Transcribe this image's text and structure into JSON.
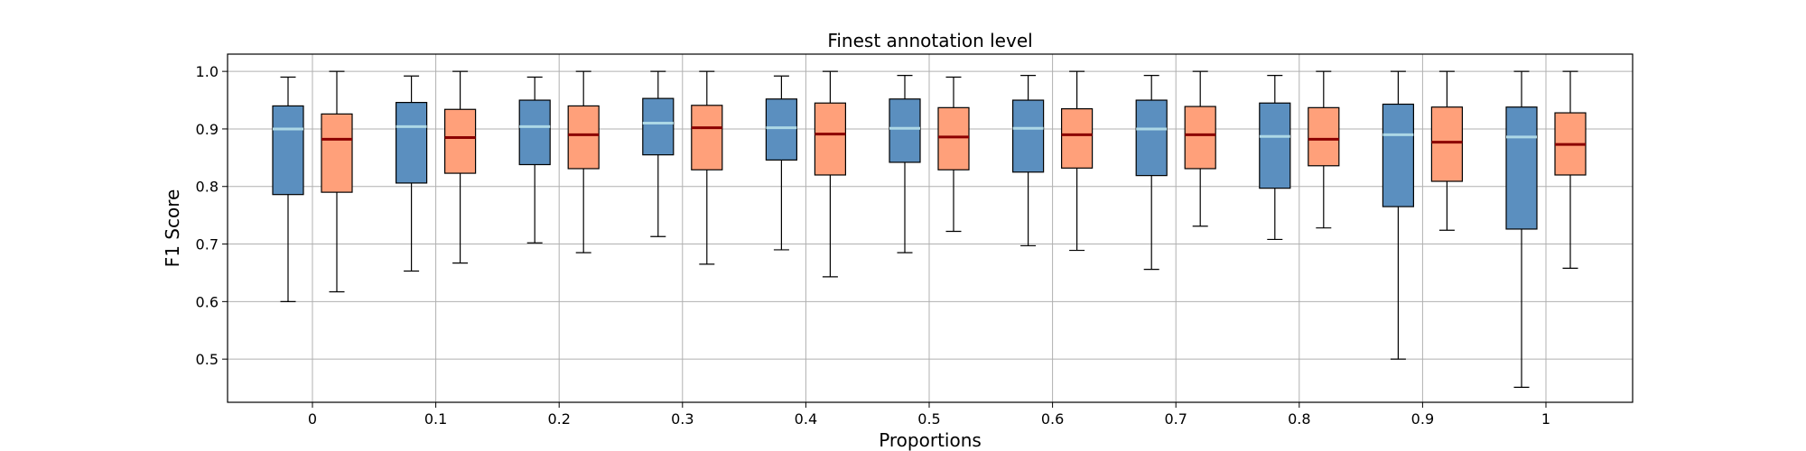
{
  "chart_data": {
    "type": "box",
    "title": "Finest annotation level",
    "xlabel": "Proportions",
    "ylabel": "F1 Score",
    "ylim": [
      0.425,
      1.03
    ],
    "yticks": [
      0.5,
      0.6,
      0.7,
      0.8,
      0.9,
      1.0
    ],
    "ytick_labels": [
      "0.5",
      "0.6",
      "0.7",
      "0.8",
      "0.9",
      "1.0"
    ],
    "categories": [
      "0",
      "0.1",
      "0.2",
      "0.3",
      "0.4",
      "0.5",
      "0.6",
      "0.7",
      "0.8",
      "0.9",
      "1"
    ],
    "grid": true,
    "series": [
      {
        "color": "#5b8fbf",
        "median_color": "#add8e6",
        "boxes": [
          {
            "min": 0.6,
            "q1": 0.786,
            "median": 0.9,
            "q3": 0.94,
            "max": 0.99
          },
          {
            "min": 0.653,
            "q1": 0.806,
            "median": 0.904,
            "q3": 0.946,
            "max": 0.992
          },
          {
            "min": 0.702,
            "q1": 0.838,
            "median": 0.904,
            "q3": 0.95,
            "max": 0.99
          },
          {
            "min": 0.713,
            "q1": 0.855,
            "median": 0.91,
            "q3": 0.953,
            "max": 1.0
          },
          {
            "min": 0.69,
            "q1": 0.846,
            "median": 0.902,
            "q3": 0.952,
            "max": 0.992
          },
          {
            "min": 0.685,
            "q1": 0.842,
            "median": 0.901,
            "q3": 0.952,
            "max": 0.993
          },
          {
            "min": 0.697,
            "q1": 0.825,
            "median": 0.901,
            "q3": 0.95,
            "max": 0.993
          },
          {
            "min": 0.656,
            "q1": 0.819,
            "median": 0.9,
            "q3": 0.95,
            "max": 0.993
          },
          {
            "min": 0.708,
            "q1": 0.797,
            "median": 0.887,
            "q3": 0.945,
            "max": 0.993
          },
          {
            "min": 0.5,
            "q1": 0.765,
            "median": 0.89,
            "q3": 0.943,
            "max": 1.0
          },
          {
            "min": 0.451,
            "q1": 0.726,
            "median": 0.886,
            "q3": 0.938,
            "max": 1.0
          }
        ]
      },
      {
        "color": "#ffa07a",
        "median_color": "#8b0000",
        "boxes": [
          {
            "min": 0.617,
            "q1": 0.79,
            "median": 0.882,
            "q3": 0.926,
            "max": 1.0
          },
          {
            "min": 0.667,
            "q1": 0.823,
            "median": 0.885,
            "q3": 0.934,
            "max": 1.0
          },
          {
            "min": 0.685,
            "q1": 0.831,
            "median": 0.89,
            "q3": 0.94,
            "max": 1.0
          },
          {
            "min": 0.665,
            "q1": 0.829,
            "median": 0.902,
            "q3": 0.941,
            "max": 1.0
          },
          {
            "min": 0.643,
            "q1": 0.82,
            "median": 0.891,
            "q3": 0.945,
            "max": 1.0
          },
          {
            "min": 0.722,
            "q1": 0.829,
            "median": 0.886,
            "q3": 0.937,
            "max": 0.99
          },
          {
            "min": 0.689,
            "q1": 0.832,
            "median": 0.89,
            "q3": 0.935,
            "max": 1.0
          },
          {
            "min": 0.731,
            "q1": 0.831,
            "median": 0.89,
            "q3": 0.939,
            "max": 1.0
          },
          {
            "min": 0.728,
            "q1": 0.836,
            "median": 0.882,
            "q3": 0.937,
            "max": 1.0
          },
          {
            "min": 0.724,
            "q1": 0.809,
            "median": 0.877,
            "q3": 0.938,
            "max": 1.0
          },
          {
            "min": 0.658,
            "q1": 0.82,
            "median": 0.873,
            "q3": 0.928,
            "max": 1.0
          }
        ]
      }
    ]
  }
}
